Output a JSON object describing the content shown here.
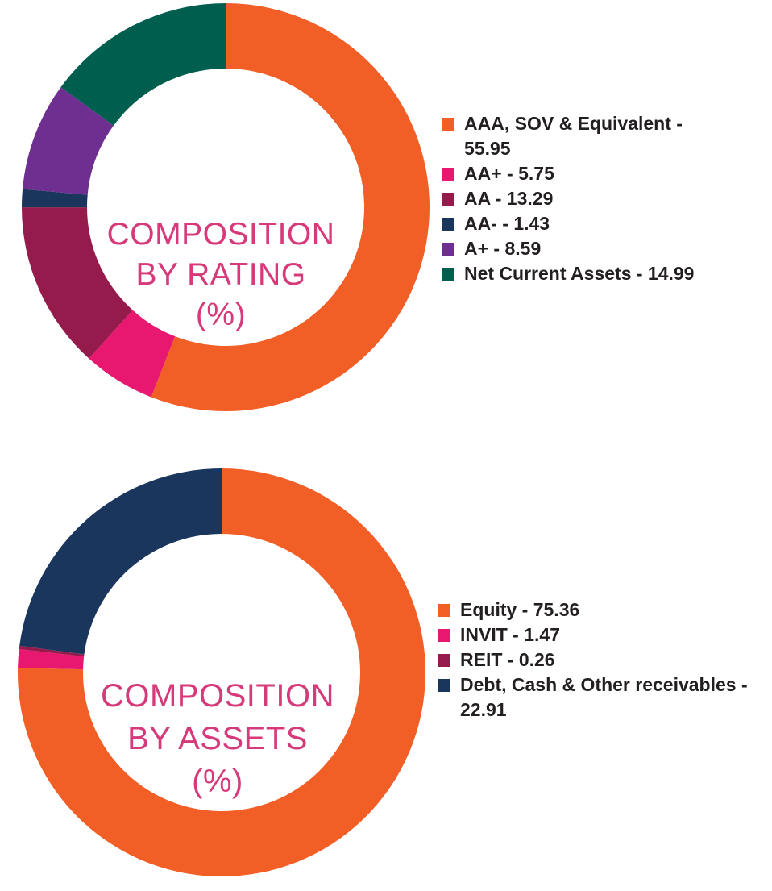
{
  "chart_data": [
    {
      "type": "pie",
      "variant": "donut",
      "center_label": [
        "COMPOSITION",
        "BY RATING",
        "(%)"
      ],
      "slices": [
        {
          "label": "AAA, SOV & Equivalent",
          "legend_text": "AAA, SOV & Equivalent - 55.95",
          "value": 55.95,
          "color": "#f15f26"
        },
        {
          "label": "AA+",
          "legend_text": "AA+ - 5.75",
          "value": 5.75,
          "color": "#e8176f"
        },
        {
          "label": "AA",
          "legend_text": "AA - 13.29",
          "value": 13.29,
          "color": "#951b4c"
        },
        {
          "label": "AA-",
          "legend_text": "AA- - 1.43",
          "value": 1.43,
          "color": "#1b365d"
        },
        {
          "label": "A+",
          "legend_text": "A+ - 8.59",
          "value": 8.59,
          "color": "#6e2f91"
        },
        {
          "label": "Net Current Assets",
          "legend_text": "Net Current Assets - 14.99",
          "value": 14.99,
          "color": "#005e4f"
        }
      ],
      "start_angle": "12 o'clock",
      "direction": "clockwise",
      "legend_position": "right"
    },
    {
      "type": "pie",
      "variant": "donut",
      "center_label": [
        "COMPOSITION",
        "BY ASSETS",
        "(%)"
      ],
      "slices": [
        {
          "label": "Equity",
          "legend_text": "Equity - 75.36",
          "value": 75.36,
          "color": "#f15f26"
        },
        {
          "label": "INVIT",
          "legend_text": "INVIT - 1.47",
          "value": 1.47,
          "color": "#e8176f"
        },
        {
          "label": "REIT",
          "legend_text": "REIT - 0.26",
          "value": 0.26,
          "color": "#951b4c"
        },
        {
          "label": "Debt, Cash & Other receivables",
          "legend_text": "Debt, Cash & Other receivables - 22.91",
          "value": 22.91,
          "color": "#1b365d"
        }
      ],
      "start_angle": "12 o'clock",
      "direction": "clockwise",
      "legend_position": "right"
    }
  ]
}
